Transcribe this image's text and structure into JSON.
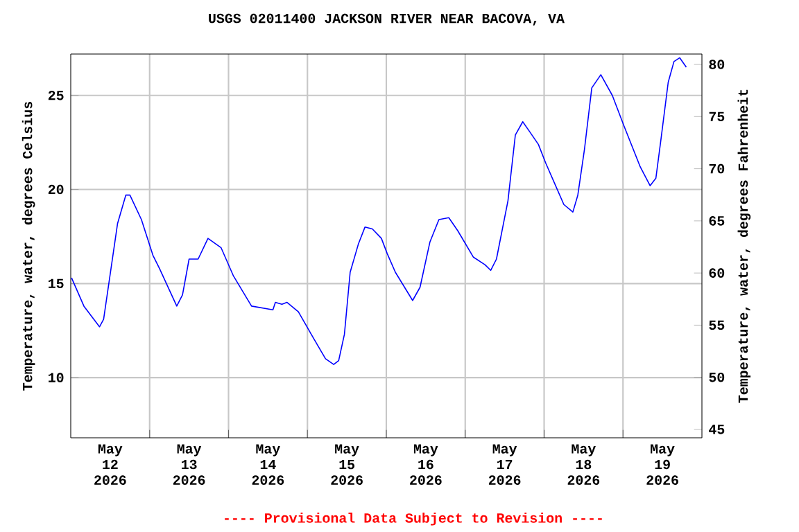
{
  "chart_data": {
    "type": "line",
    "title": "USGS 02011400 JACKSON RIVER NEAR BACOVA, VA",
    "ylabel": "Temperature, water, degrees Celsius",
    "y2label": "Temperature, water, degrees Fahrenheit",
    "annotations": [
      "---- Provisional Data Subject to Revision ----"
    ],
    "xlim": [
      "2026-05-12",
      "2026-05-20"
    ],
    "xticks": [
      {
        "value": "2026-05-12T12:00",
        "label": "May 12 2026"
      },
      {
        "value": "2026-05-13T12:00",
        "label": "May 13 2026"
      },
      {
        "value": "2026-05-14T12:00",
        "label": "May 14 2026"
      },
      {
        "value": "2026-05-15T12:00",
        "label": "May 15 2026"
      },
      {
        "value": "2026-05-16T12:00",
        "label": "May 16 2026"
      },
      {
        "value": "2026-05-17T12:00",
        "label": "May 17 2026"
      },
      {
        "value": "2026-05-18T12:00",
        "label": "May 18 2026"
      },
      {
        "value": "2026-05-19T12:00",
        "label": "May 19 2026"
      },
      {
        "value": "2026-05-13",
        "label": null
      },
      {
        "value": "2026-05-14",
        "label": null
      },
      {
        "value": "2026-05-15",
        "label": null
      },
      {
        "value": "2026-05-16",
        "label": null
      },
      {
        "value": "2026-05-17",
        "label": null
      },
      {
        "value": "2026-05-18",
        "label": null
      },
      {
        "value": "2026-05-19",
        "label": null
      }
    ],
    "ylim": [
      6.8,
      27.2
    ],
    "yticks": [
      10,
      15,
      20,
      25
    ],
    "y2lim": [
      44.2,
      81.0
    ],
    "y2ticks": [
      45,
      50,
      55,
      60,
      65,
      70,
      75,
      80
    ],
    "grid": true,
    "marker": "none",
    "line_style": "solid",
    "series": [
      {
        "color": "#0000ff",
        "x": [
          "2026-05-12T00:15",
          "2026-05-12T04:00",
          "2026-05-12T08:45",
          "2026-05-12T10:00",
          "2026-05-12T12:15",
          "2026-05-12T14:15",
          "2026-05-12T16:45",
          "2026-05-12T18:00",
          "2026-05-12T21:30",
          "2026-05-13T01:00",
          "2026-05-13T03:00",
          "2026-05-13T08:15",
          "2026-05-13T10:00",
          "2026-05-13T12:00",
          "2026-05-13T14:45",
          "2026-05-13T17:45",
          "2026-05-13T21:45",
          "2026-05-14T01:30",
          "2026-05-14T07:00",
          "2026-05-14T13:30",
          "2026-05-14T14:15",
          "2026-05-14T16:15",
          "2026-05-14T17:45",
          "2026-05-14T21:15",
          "2026-05-15T01:30",
          "2026-05-15T05:30",
          "2026-05-15T08:00",
          "2026-05-15T09:30",
          "2026-05-15T11:15",
          "2026-05-15T13:00",
          "2026-05-15T15:30",
          "2026-05-15T17:30",
          "2026-05-15T19:45",
          "2026-05-15T22:30",
          "2026-05-16T00:15",
          "2026-05-16T02:45",
          "2026-05-16T08:00",
          "2026-05-16T10:15",
          "2026-05-16T13:15",
          "2026-05-16T16:00",
          "2026-05-16T19:00",
          "2026-05-16T21:45",
          "2026-05-17T02:30",
          "2026-05-17T06:00",
          "2026-05-17T07:45",
          "2026-05-17T09:30",
          "2026-05-17T13:00",
          "2026-05-17T15:15",
          "2026-05-17T17:30",
          "2026-05-17T19:30",
          "2026-05-17T22:15",
          "2026-05-18T00:30",
          "2026-05-18T03:15",
          "2026-05-18T06:00",
          "2026-05-18T08:45",
          "2026-05-18T10:15",
          "2026-05-18T12:15",
          "2026-05-18T14:30",
          "2026-05-18T17:15",
          "2026-05-18T20:45",
          "2026-05-19T00:15",
          "2026-05-19T05:15",
          "2026-05-19T08:15",
          "2026-05-19T10:00",
          "2026-05-19T11:30",
          "2026-05-19T13:45",
          "2026-05-19T15:30",
          "2026-05-19T17:15",
          "2026-05-19T19:15"
        ],
        "values": [
          15.3,
          13.8,
          12.7,
          13.1,
          15.8,
          18.2,
          19.7,
          19.7,
          18.4,
          16.5,
          15.8,
          13.8,
          14.4,
          16.3,
          16.3,
          17.4,
          16.9,
          15.4,
          13.8,
          13.6,
          14.0,
          13.9,
          14.0,
          13.5,
          12.2,
          11.0,
          10.7,
          10.9,
          12.3,
          15.6,
          17.1,
          18.0,
          17.9,
          17.4,
          16.6,
          15.6,
          14.1,
          14.8,
          17.2,
          18.4,
          18.5,
          17.8,
          16.4,
          16.0,
          15.7,
          16.3,
          19.4,
          22.9,
          23.6,
          23.1,
          22.4,
          21.4,
          20.3,
          19.2,
          18.8,
          19.7,
          22.1,
          25.4,
          26.1,
          25.0,
          23.4,
          21.2,
          20.2,
          20.6,
          22.6,
          25.7,
          26.8,
          27.0,
          26.5
        ]
      }
    ]
  }
}
